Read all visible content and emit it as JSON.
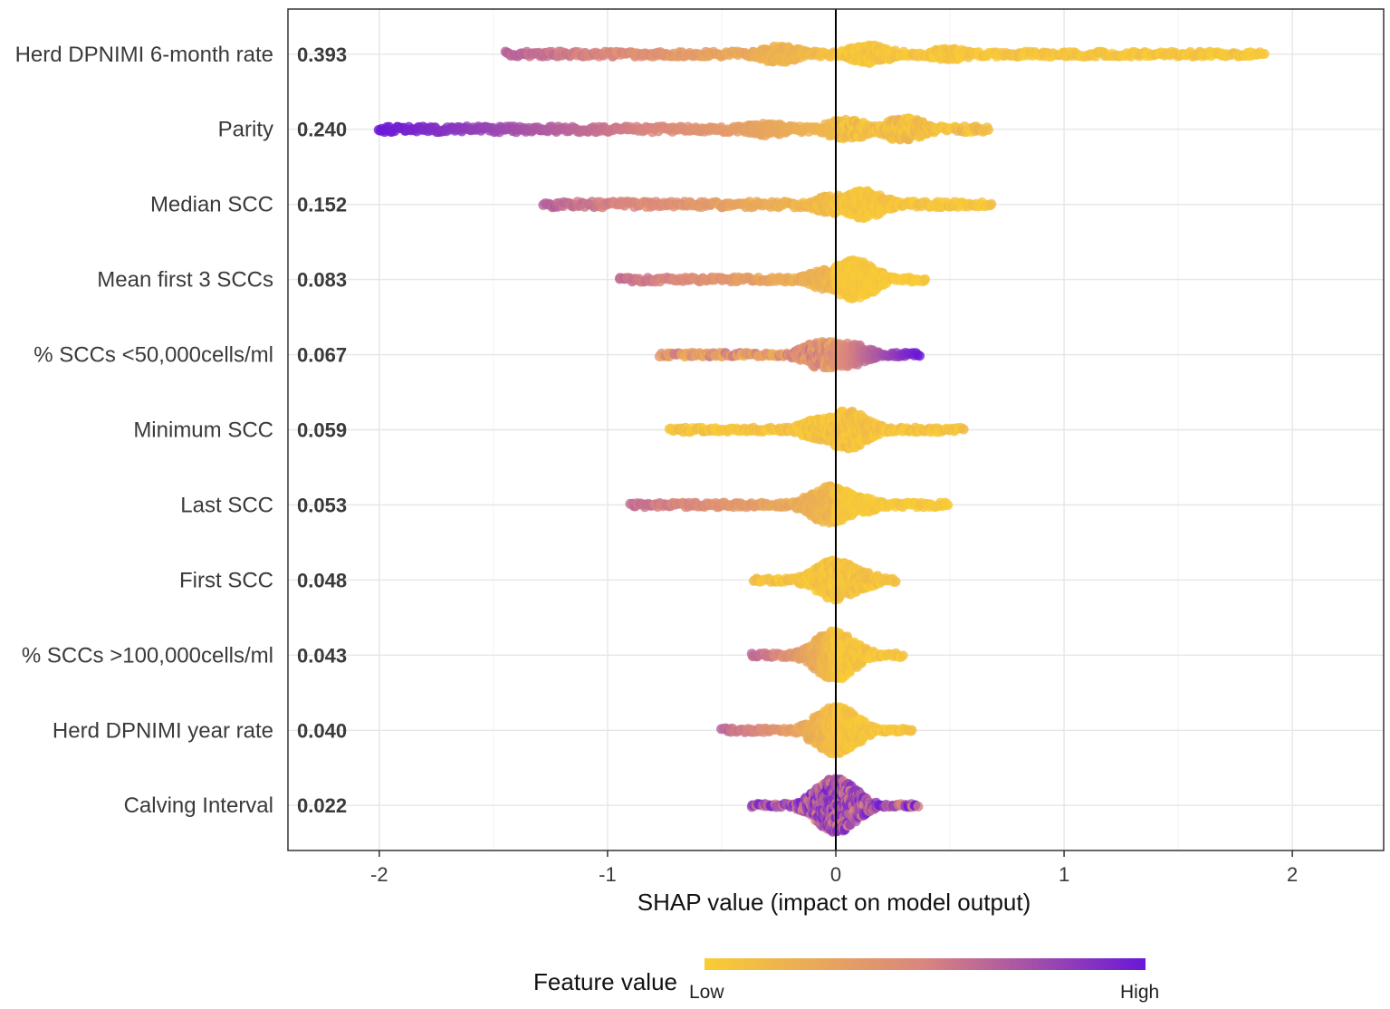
{
  "chart_data": {
    "type": "scatter",
    "subtype": "shap-summary-beeswarm",
    "xlabel": "SHAP value (impact on model output)",
    "xlim": [
      -2.4,
      2.4
    ],
    "x_ticks": [
      -2,
      -1,
      0,
      1,
      2
    ],
    "x_tick_labels": [
      "-2",
      "-1",
      "0",
      "1",
      "2"
    ],
    "grid": true,
    "colors": {
      "low": "#F9CD34",
      "mid": "#D9857F",
      "high": "#6A17D8"
    },
    "legend": {
      "title": "Feature value",
      "low_label": "Low",
      "high_label": "High",
      "placement": "bottom"
    },
    "features": [
      {
        "name": "Herd DPNIMI 6-month rate",
        "importance": "0.393",
        "min": -1.45,
        "max": 1.88,
        "peaks": [
          [
            -0.25,
            9
          ],
          [
            0.15,
            10
          ],
          [
            0.5,
            6
          ]
        ],
        "spread": 8,
        "color": "mixed"
      },
      {
        "name": "Parity",
        "importance": "0.240",
        "min": -2.0,
        "max": 0.67,
        "peaks": [
          [
            0.05,
            11
          ],
          [
            0.3,
            13
          ],
          [
            -0.3,
            7
          ]
        ],
        "spread": 9,
        "color": "neg-high"
      },
      {
        "name": "Median SCC",
        "importance": "0.152",
        "min": -1.28,
        "max": 0.68,
        "peaks": [
          [
            0.0,
            10
          ],
          [
            0.12,
            15
          ]
        ],
        "spread": 9,
        "color": "mixed"
      },
      {
        "name": "Mean first 3 SCCs",
        "importance": "0.083",
        "min": -0.95,
        "max": 0.4,
        "peaks": [
          [
            0.08,
            22
          ],
          [
            -0.03,
            11
          ]
        ],
        "spread": 7,
        "color": "neg-mid"
      },
      {
        "name": "% SCCs <50,000cells/ml",
        "importance": "0.067",
        "min": -0.77,
        "max": 0.37,
        "peaks": [
          [
            -0.05,
            15
          ],
          [
            0.05,
            13
          ]
        ],
        "spread": 6,
        "color": "pos-high"
      },
      {
        "name": "Minimum SCC",
        "importance": "0.059",
        "min": -0.73,
        "max": 0.56,
        "peaks": [
          [
            0.05,
            21
          ],
          [
            -0.05,
            13
          ]
        ],
        "spread": 7,
        "color": "mostly-low"
      },
      {
        "name": "Last SCC",
        "importance": "0.053",
        "min": -0.9,
        "max": 0.5,
        "peaks": [
          [
            -0.02,
            21
          ],
          [
            0.08,
            10
          ]
        ],
        "spread": 7,
        "color": "neg-mid"
      },
      {
        "name": "First SCC",
        "importance": "0.048",
        "min": -0.36,
        "max": 0.27,
        "peaks": [
          [
            0.0,
            22
          ],
          [
            0.07,
            12
          ]
        ],
        "spread": 6,
        "color": "mostly-low"
      },
      {
        "name": "% SCCs >100,000cells/ml",
        "importance": "0.043",
        "min": -0.37,
        "max": 0.3,
        "peaks": [
          [
            0.0,
            27
          ]
        ],
        "spread": 6,
        "color": "mixed"
      },
      {
        "name": "Herd DPNIMI year rate",
        "importance": "0.040",
        "min": -0.5,
        "max": 0.34,
        "peaks": [
          [
            0.0,
            27
          ]
        ],
        "spread": 6,
        "color": "mixed"
      },
      {
        "name": "Calving Interval",
        "importance": "0.022",
        "min": -0.37,
        "max": 0.36,
        "peaks": [
          [
            0.0,
            30
          ]
        ],
        "spread": 5,
        "color": "mid-high"
      }
    ]
  }
}
